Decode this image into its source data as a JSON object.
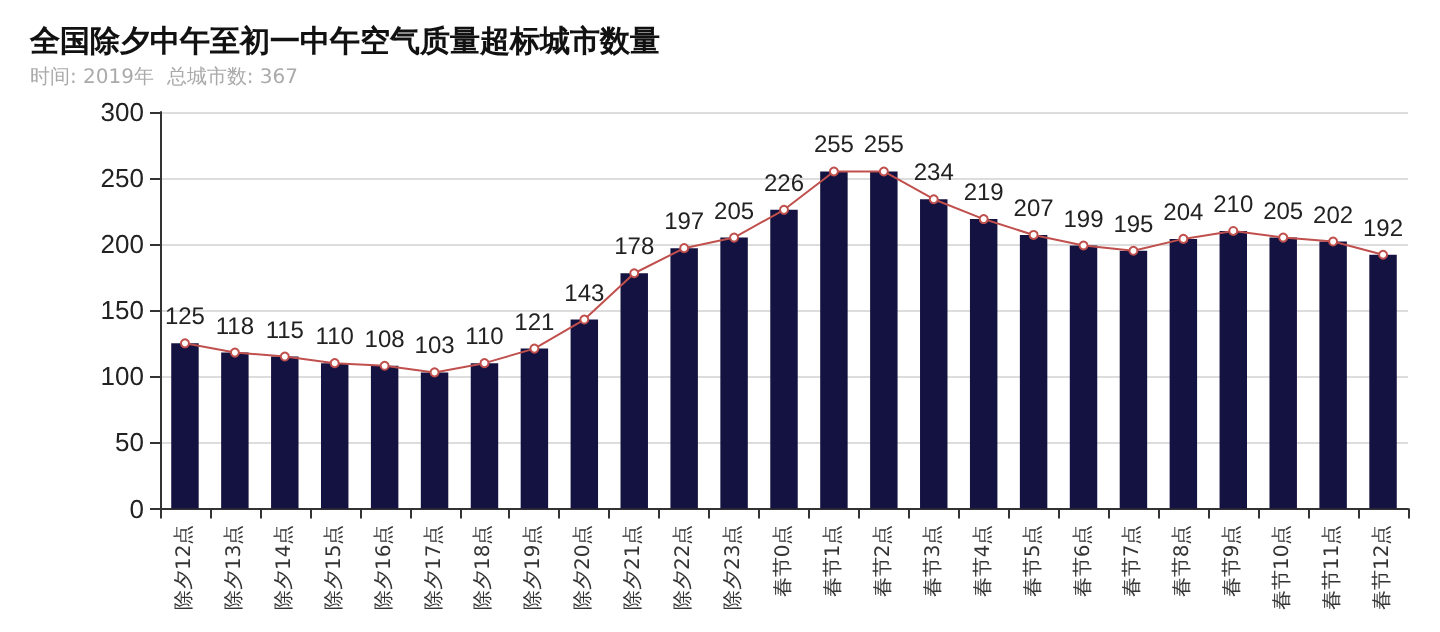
{
  "chart_data": {
    "type": "bar",
    "title": "全国除夕中午至初一中午空气质量超标城市数量",
    "subtitle": "时间: 2019年  总城市数: 367",
    "categories": [
      "除夕12点",
      "除夕13点",
      "除夕14点",
      "除夕15点",
      "除夕16点",
      "除夕17点",
      "除夕18点",
      "除夕19点",
      "除夕20点",
      "除夕21点",
      "除夕22点",
      "除夕23点",
      "春节0点",
      "春节1点",
      "春节2点",
      "春节3点",
      "春节4点",
      "春节5点",
      "春节6点",
      "春节7点",
      "春节8点",
      "春节9点",
      "春节10点",
      "春节11点",
      "春节12点"
    ],
    "series": [
      {
        "color": "#141240",
        "values": [
          125,
          118,
          115,
          110,
          108,
          103,
          110,
          121,
          143,
          178,
          197,
          205,
          226,
          255,
          255,
          234,
          219,
          207,
          199,
          195,
          204,
          210,
          205,
          202,
          192
        ]
      },
      {
        "type": "line",
        "color": "#c0504d",
        "marker": "circle",
        "data_labels": true,
        "values": [
          125,
          118,
          115,
          110,
          108,
          103,
          110,
          121,
          143,
          178,
          197,
          205,
          226,
          255,
          255,
          234,
          219,
          207,
          199,
          195,
          204,
          210,
          205,
          202,
          192
        ]
      }
    ],
    "ylim": [
      0,
      300
    ],
    "yticks": [
      0,
      50,
      100,
      150,
      200,
      250,
      300
    ],
    "grid": "y"
  }
}
